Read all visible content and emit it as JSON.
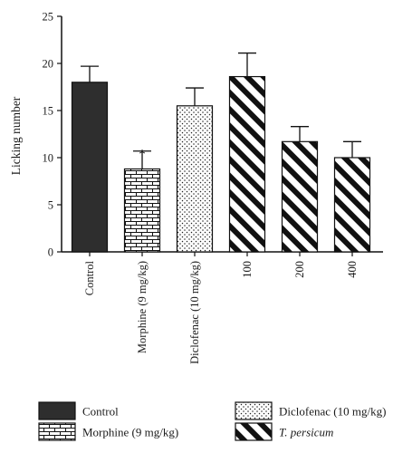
{
  "chart_data": {
    "type": "bar",
    "ylabel": "Licking number",
    "ylim": [
      0,
      25
    ],
    "yticks": [
      0,
      5,
      10,
      15,
      20,
      25
    ],
    "grid": false,
    "legend_position": "bottom",
    "bars": [
      {
        "label": "Control",
        "value": 18.0,
        "error": 1.7,
        "pattern": "solid",
        "annotation": ""
      },
      {
        "label": "Morphine (9 mg/kg)",
        "value": 8.8,
        "error": 1.9,
        "pattern": "brick",
        "annotation": "*"
      },
      {
        "label": "Diclofenac (10 mg/kg)",
        "value": 15.5,
        "error": 1.9,
        "pattern": "dots",
        "annotation": ""
      },
      {
        "label": "100",
        "value": 18.6,
        "error": 2.5,
        "pattern": "stripes",
        "annotation": ""
      },
      {
        "label": "200",
        "value": 11.7,
        "error": 1.6,
        "pattern": "stripes",
        "annotation": ""
      },
      {
        "label": "400",
        "value": 10.0,
        "error": 1.7,
        "pattern": "stripes",
        "annotation": ""
      }
    ],
    "legend": [
      {
        "label": "Control",
        "pattern": "solid"
      },
      {
        "label": "Diclofenac (10 mg/kg)",
        "pattern": "dots"
      },
      {
        "label": "Morphine (9 mg/kg)",
        "pattern": "brick"
      },
      {
        "label": "T. persicum",
        "pattern": "stripes",
        "italic": true
      }
    ],
    "colors": {
      "solid": "#2e2e2e",
      "ink": "#111111"
    }
  }
}
